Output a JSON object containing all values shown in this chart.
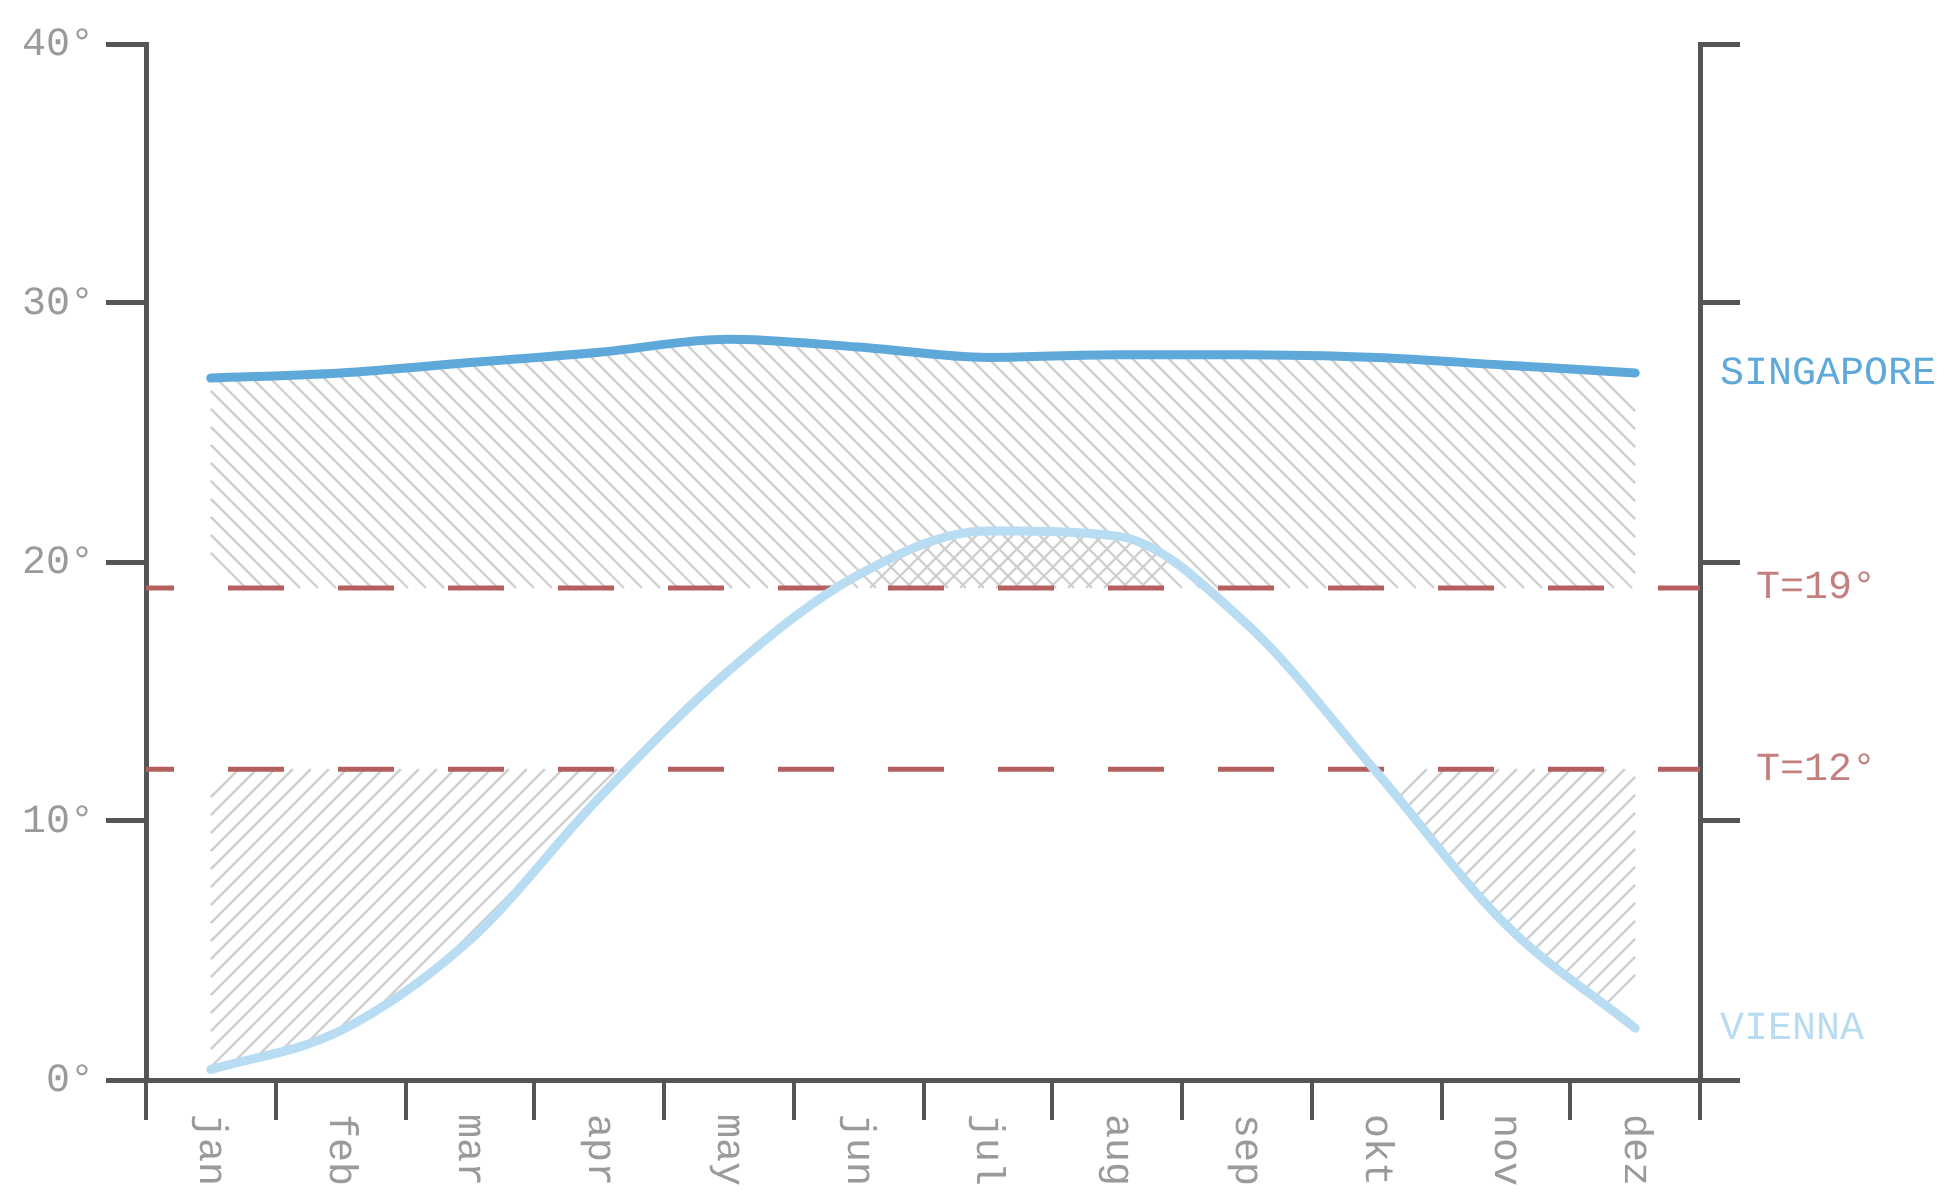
{
  "chart_data": {
    "type": "line",
    "categories": [
      "jan",
      "feb",
      "mar",
      "apr",
      "may",
      "jun",
      "jul",
      "aug",
      "sep",
      "okt",
      "nov",
      "dez"
    ],
    "ylim": [
      0,
      40
    ],
    "yticks": [
      {
        "value": 0,
        "label": "0°"
      },
      {
        "value": 10,
        "label": "10°"
      },
      {
        "value": 20,
        "label": "20°"
      },
      {
        "value": 30,
        "label": "30°"
      },
      {
        "value": 40,
        "label": "40°"
      }
    ],
    "series": [
      {
        "name": "SINGAPORE",
        "color": "#5ea8da",
        "values": [
          27.1,
          27.3,
          27.7,
          28.1,
          28.6,
          28.3,
          27.9,
          28.0,
          28.0,
          27.9,
          27.6,
          27.3
        ]
      },
      {
        "name": "VIENNA",
        "color": "#b8dcf2",
        "values": [
          0.4,
          1.9,
          5.4,
          10.9,
          15.8,
          19.5,
          21.2,
          21.0,
          17.6,
          11.9,
          6.0,
          2.0
        ]
      }
    ],
    "ref_lines": [
      {
        "axis": "y",
        "value": 19,
        "label": "T=19°",
        "color": "#b5605e",
        "line_style": "dashed"
      },
      {
        "axis": "y",
        "value": 12,
        "label": "T=12°",
        "color": "#b5605e",
        "line_style": "dashed"
      }
    ],
    "marker": "none"
  }
}
